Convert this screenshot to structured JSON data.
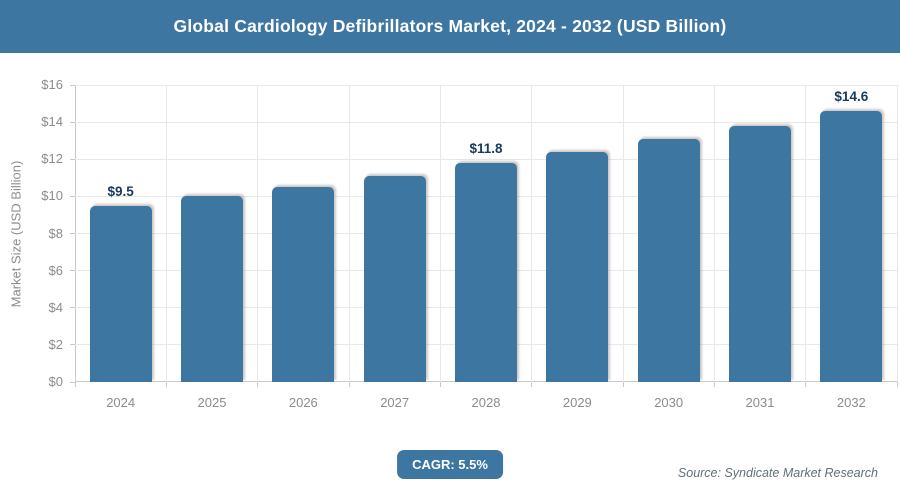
{
  "header": {
    "title": "Global Cardiology Defibrillators Market, 2024 - 2032 (USD Billion)"
  },
  "chart_data": {
    "type": "bar",
    "title": "Global Cardiology Defibrillators Market, 2024 - 2032 (USD Billion)",
    "categories": [
      "2024",
      "2025",
      "2026",
      "2027",
      "2028",
      "2029",
      "2030",
      "2031",
      "2032"
    ],
    "values": [
      9.5,
      10.0,
      10.5,
      11.1,
      11.8,
      12.4,
      13.1,
      13.8,
      14.6
    ],
    "data_labels": [
      {
        "index": 0,
        "text": "$9.5"
      },
      {
        "index": 4,
        "text": "$11.8"
      },
      {
        "index": 8,
        "text": "$14.6"
      }
    ],
    "xlabel": "",
    "ylabel": "Market Size (USD Billion)",
    "ylim": [
      0,
      16
    ],
    "ytick_step": 2,
    "ytick_labels": [
      "$0",
      "$2",
      "$4",
      "$6",
      "$8",
      "$10",
      "$12",
      "$14",
      "$16"
    ],
    "grid": true,
    "legend": false
  },
  "footer": {
    "cagr_label": "CAGR: 5.5%",
    "source": "Source: Syndicate Market Research"
  },
  "colors": {
    "accent": "#3d76a1",
    "bar": "#3d76a1",
    "data_label": "#18395e",
    "grid": "#e8e8e8",
    "axis": "#c9c9c9",
    "tick_label": "#8c8c8c"
  }
}
